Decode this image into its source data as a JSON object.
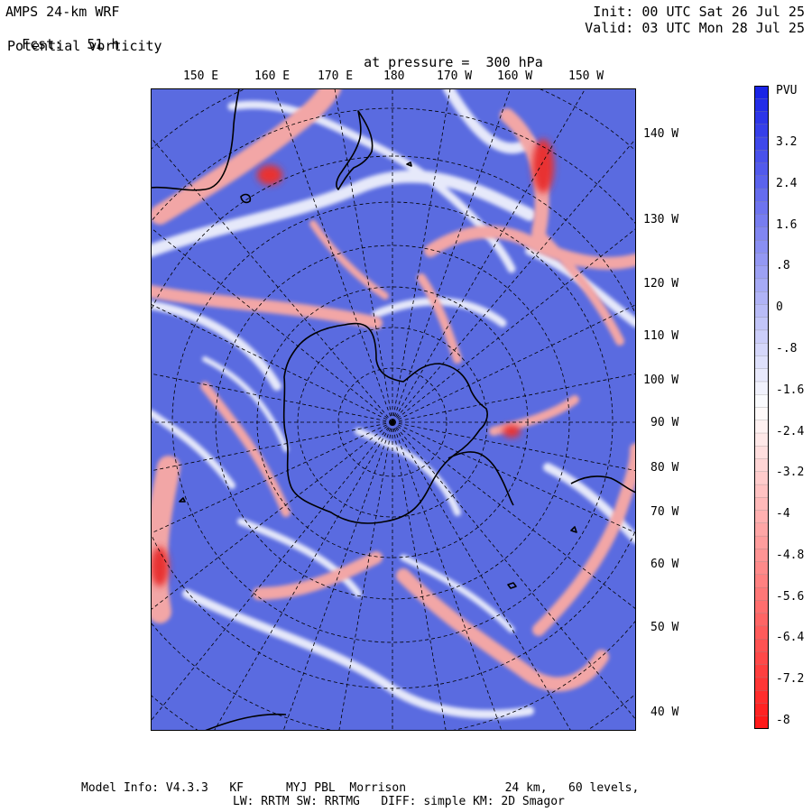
{
  "header": {
    "model": "AMPS 24-km WRF",
    "fcst_label": "Fcst:",
    "fcst_value": "51 h",
    "field": "Potential vorticity",
    "pressure_label": "at pressure =",
    "pressure_value": "300 hPa",
    "init": "Init: 00 UTC Sat 26 Jul 25",
    "valid": "Valid: 03 UTC Mon 28 Jul 25"
  },
  "map": {
    "top_labels": [
      "150 E",
      "160 E",
      "170 E",
      "180",
      "170 W",
      "160 W",
      "150 W"
    ],
    "right_labels": [
      "140 W",
      "130 W",
      "120 W",
      "110 W",
      "100 W",
      "90 W",
      "80 W",
      "70 W",
      "60 W",
      "50 W",
      "40 W"
    ],
    "colors": {
      "background": "#5a6be0",
      "positive": "#ffffff",
      "red": "#e83030",
      "pink": "#f2a6a6",
      "coast": "#000000"
    }
  },
  "colorbar": {
    "unit": "PVU",
    "labels": [
      "3.2",
      "2.4",
      "1.6",
      ".8",
      "0",
      "-.8",
      "-1.6",
      "-2.4",
      "-3.2",
      "-4",
      "-4.8",
      "-5.6",
      "-6.4",
      "-7.2",
      "-8"
    ],
    "top_color": "#1a24e6",
    "mid_color": "#ffffff",
    "bottom_color": "#ff1a1a"
  },
  "footer": {
    "line1": "Model Info: V4.3.3   KF      MYJ PBL  Morrison              24 km,   60 levels,",
    "line2": "LW: RRTM SW: RRTMG   DIFF: simple KM: 2D Smagor"
  }
}
